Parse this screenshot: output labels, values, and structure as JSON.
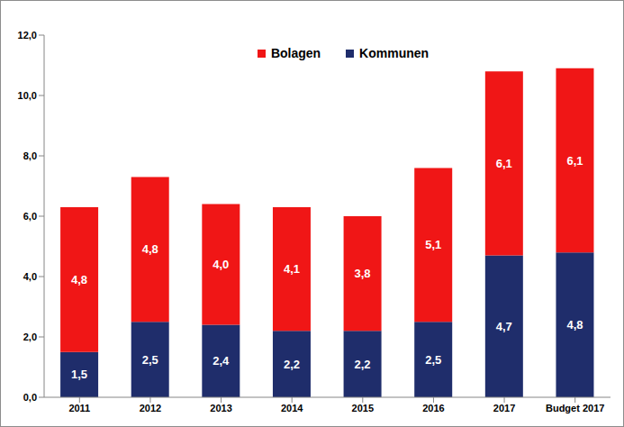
{
  "chart_data": {
    "type": "bar",
    "stacked": true,
    "data_labels": true,
    "grid": false,
    "legend": "top",
    "categories": [
      "2011",
      "2012",
      "2013",
      "2014",
      "2015",
      "2016",
      "2017",
      "Budget 2017"
    ],
    "series": [
      {
        "name": "Kommunen",
        "color": "#1f2d6b",
        "values": [
          1.5,
          2.5,
          2.4,
          2.2,
          2.2,
          2.5,
          4.7,
          4.8
        ],
        "value_labels": [
          "1,5",
          "2,5",
          "2,4",
          "2,2",
          "2,2",
          "2,5",
          "4,7",
          "4,8"
        ]
      },
      {
        "name": "Bolagen",
        "color": "#f01616",
        "values": [
          4.8,
          4.8,
          4.0,
          4.1,
          3.8,
          5.1,
          6.1,
          6.1
        ],
        "value_labels": [
          "4,8",
          "4,8",
          "4,0",
          "4,1",
          "3,8",
          "5,1",
          "6,1",
          "6,1"
        ]
      }
    ],
    "ylim": [
      0,
      12
    ],
    "yticks": [
      {
        "value": 0,
        "label": "0,0"
      },
      {
        "value": 2,
        "label": "2,0"
      },
      {
        "value": 4,
        "label": "4,0"
      },
      {
        "value": 6,
        "label": "6,0"
      },
      {
        "value": 8,
        "label": "8,0"
      },
      {
        "value": 10,
        "label": "10,0"
      },
      {
        "value": 12,
        "label": "12,0"
      }
    ]
  }
}
